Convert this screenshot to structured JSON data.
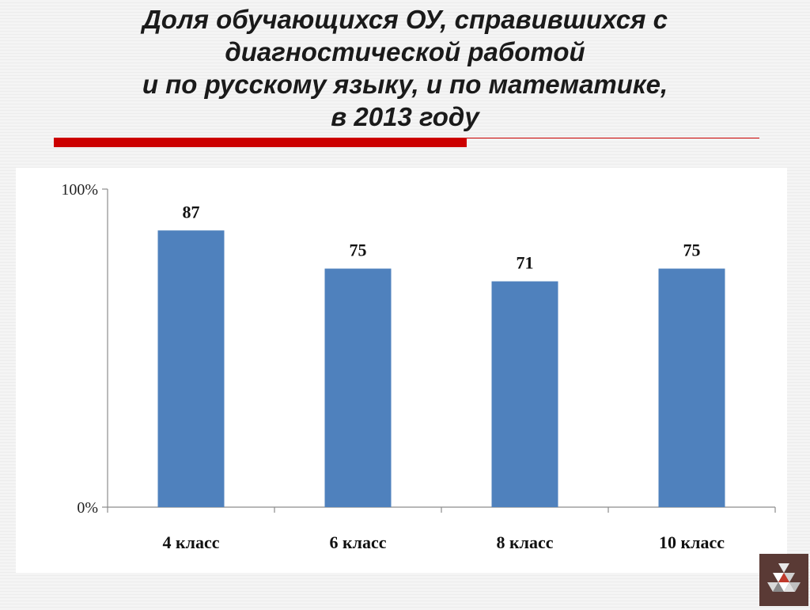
{
  "title": {
    "lines": [
      "Доля обучающихся ОУ, справившихся с",
      "диагностической работой",
      "и по русскому языку, и по математике,",
      "в 2013 году"
    ]
  },
  "colors": {
    "bar": "#4f81bd",
    "title_rule": "#cc0000",
    "logo_background": "#5a3a35"
  },
  "logo": {
    "icon": "triangle-mosaic-logo-icon"
  },
  "chart_data": {
    "type": "bar",
    "categories": [
      "4 класс",
      "6 класс",
      "8 класс",
      "10 класс"
    ],
    "values": [
      87,
      75,
      71,
      75
    ],
    "data_labels": [
      "87",
      "75",
      "71",
      "75"
    ],
    "y_ticks": [
      "0%",
      "100%"
    ],
    "ylim": [
      0,
      100
    ],
    "grid": false,
    "legend": "none"
  }
}
